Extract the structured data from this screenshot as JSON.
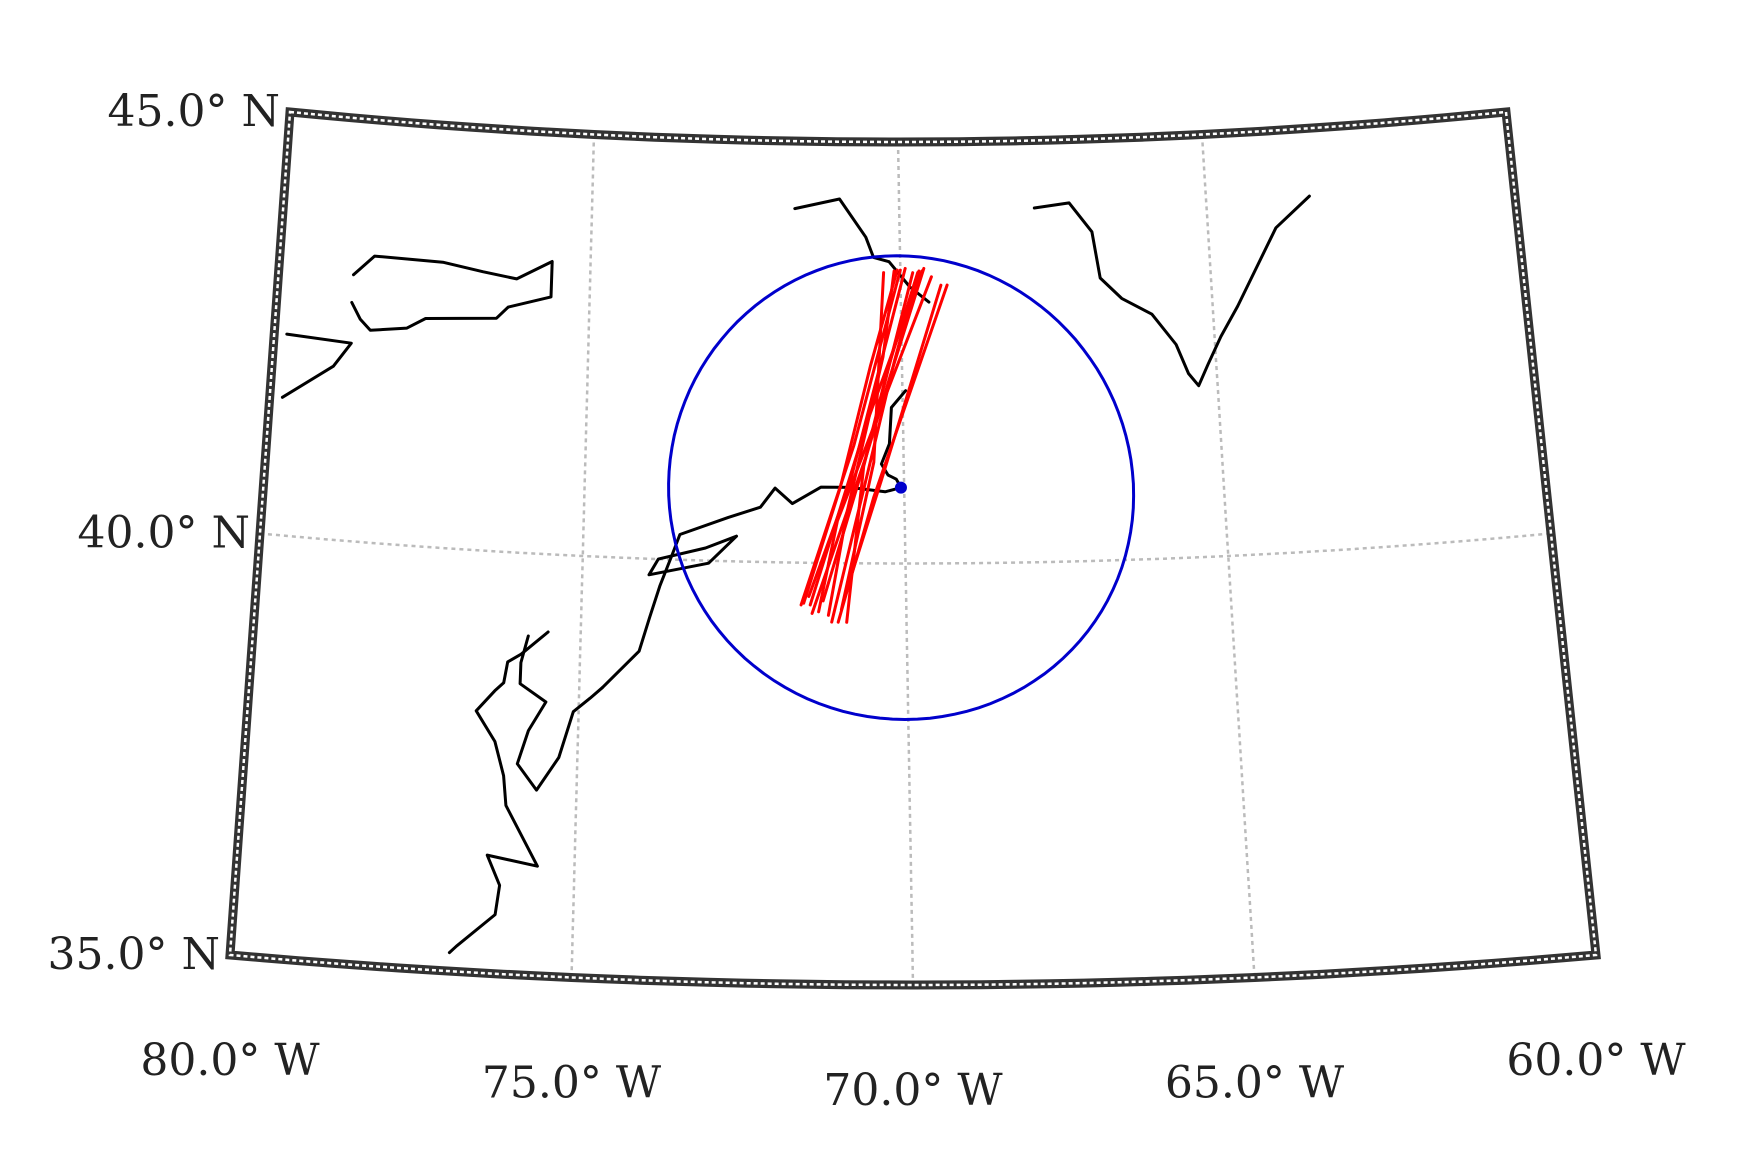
{
  "map": {
    "projection": "conic",
    "extent": {
      "lon": [
        -80,
        -60
      ],
      "lat": [
        35,
        45
      ]
    },
    "lat_labels": [
      {
        "lat": 45,
        "text": "45.0° N"
      },
      {
        "lat": 40,
        "text": "40.0° N"
      },
      {
        "lat": 35,
        "text": "35.0° N"
      }
    ],
    "lon_labels": [
      {
        "lon": -80,
        "text": "80.0° W"
      },
      {
        "lon": -75,
        "text": "75.0° W"
      },
      {
        "lon": -70,
        "text": "70.0° W"
      },
      {
        "lon": -65,
        "text": "65.0° W"
      },
      {
        "lon": -60,
        "text": "60.0° W"
      }
    ],
    "grid_lons": [
      -75,
      -70,
      -65
    ],
    "grid_lats": [
      40
    ],
    "center": {
      "lon": -70.05,
      "lat": 40.9
    },
    "range_circle_radius_deg": 2.75,
    "colors": {
      "frame": "#333333",
      "grid": "#bbbbbb",
      "coastline": "#000000",
      "tracks": "#ff0000",
      "circle": "#0000cc"
    },
    "coastlines": [
      [
        [
          -71.7,
          44.2
        ],
        [
          -70.97,
          44.32
        ],
        [
          -70.55,
          43.87
        ],
        [
          -70.43,
          43.63
        ],
        [
          -70.18,
          43.58
        ],
        [
          -69.85,
          43.28
        ],
        [
          -69.55,
          43.1
        ]
      ],
      [
        [
          -67.8,
          44.2
        ],
        [
          -67.23,
          44.25
        ],
        [
          -66.88,
          43.9
        ],
        [
          -66.78,
          43.35
        ],
        [
          -66.45,
          43.1
        ],
        [
          -65.98,
          42.9
        ],
        [
          -65.62,
          42.53
        ],
        [
          -65.45,
          42.18
        ],
        [
          -65.3,
          42.03
        ],
        [
          -65.13,
          42.28
        ],
        [
          -64.9,
          42.6
        ],
        [
          -64.6,
          42.95
        ],
        [
          -63.9,
          43.85
        ],
        [
          -63.32,
          44.2
        ]
      ],
      [
        [
          -78.8,
          43.15
        ],
        [
          -78.48,
          43.39
        ],
        [
          -77.38,
          43.38
        ],
        [
          -76.73,
          43.3
        ],
        [
          -76.18,
          43.24
        ],
        [
          -75.62,
          43.47
        ],
        [
          -75.62,
          43.05
        ],
        [
          -76.3,
          42.9
        ],
        [
          -76.48,
          42.76
        ],
        [
          -77.07,
          42.73
        ],
        [
          -77.61,
          42.7
        ],
        [
          -77.9,
          42.57
        ],
        [
          -78.48,
          42.51
        ],
        [
          -78.65,
          42.63
        ],
        [
          -78.8,
          42.82
        ]
      ],
      [
        [
          -79.8,
          42.38
        ],
        [
          -78.77,
          42.34
        ],
        [
          -79.03,
          42.05
        ],
        [
          -79.8,
          41.63
        ]
      ],
      [
        [
          -69.95,
          42.05
        ],
        [
          -70.18,
          41.85
        ],
        [
          -70.22,
          41.42
        ],
        [
          -70.35,
          41.18
        ],
        [
          -70.25,
          41.05
        ],
        [
          -70.12,
          41.0
        ],
        [
          -70.05,
          40.9
        ],
        [
          -70.3,
          40.85
        ],
        [
          -70.85,
          40.9
        ],
        [
          -71.3,
          40.9
        ],
        [
          -71.75,
          40.7
        ],
        [
          -72.02,
          40.88
        ],
        [
          -72.25,
          40.65
        ],
        [
          -72.75,
          40.52
        ],
        [
          -73.5,
          40.3
        ],
        [
          -73.62,
          40.05
        ],
        [
          -73.8,
          39.68
        ],
        [
          -73.95,
          39.3
        ],
        [
          -74.1,
          38.9
        ],
        [
          -74.65,
          38.45
        ]
      ],
      [
        [
          -72.62,
          40.3
        ],
        [
          -73.1,
          40.15
        ],
        [
          -73.83,
          40.0
        ],
        [
          -73.97,
          39.81
        ],
        [
          -73.05,
          39.97
        ],
        [
          -72.62,
          40.3
        ]
      ],
      [
        [
          -74.65,
          38.45
        ],
        [
          -74.83,
          38.32
        ],
        [
          -75.08,
          38.15
        ],
        [
          -75.28,
          37.6
        ],
        [
          -75.6,
          37.2
        ],
        [
          -75.9,
          37.5
        ],
        [
          -75.75,
          37.9
        ],
        [
          -75.5,
          38.25
        ],
        [
          -75.9,
          38.45
        ],
        [
          -75.9,
          38.7
        ],
        [
          -75.8,
          39.02
        ]
      ],
      [
        [
          -75.5,
          39.08
        ],
        [
          -75.9,
          38.8
        ],
        [
          -76.1,
          38.7
        ],
        [
          -76.15,
          38.45
        ],
        [
          -76.28,
          38.35
        ],
        [
          -76.55,
          38.1
        ],
        [
          -76.25,
          37.75
        ],
        [
          -76.1,
          37.35
        ],
        [
          -76.05,
          37.0
        ],
        [
          -75.55,
          36.3
        ],
        [
          -76.3,
          36.4
        ],
        [
          -76.1,
          36.05
        ],
        [
          -76.15,
          35.7
        ],
        [
          -76.7,
          35.3
        ],
        [
          -76.8,
          35.22
        ]
      ]
    ],
    "tracks": [
      [
        [
          -70.27,
          43.45
        ],
        [
          -70.47,
          41.2
        ],
        [
          -71.0,
          39.45
        ]
      ],
      [
        [
          -69.72,
          43.45
        ],
        [
          -70.23,
          42.3
        ],
        [
          -70.6,
          41.25
        ],
        [
          -71.45,
          39.4
        ]
      ],
      [
        [
          -69.92,
          43.5
        ],
        [
          -70.85,
          40.95
        ],
        [
          -71.5,
          39.6
        ]
      ],
      [
        [
          -69.35,
          43.3
        ],
        [
          -70.35,
          41.0
        ],
        [
          -70.95,
          39.6
        ]
      ],
      [
        [
          -69.62,
          43.5
        ],
        [
          -70.2,
          42.2
        ],
        [
          -71.28,
          39.55
        ]
      ],
      [
        [
          -70.0,
          43.48
        ],
        [
          -70.78,
          41.4
        ],
        [
          -71.62,
          39.5
        ]
      ],
      [
        [
          -69.5,
          43.4
        ],
        [
          -71.05,
          40.5
        ],
        [
          -71.35,
          39.42
        ]
      ],
      [
        [
          -69.8,
          43.45
        ],
        [
          -70.63,
          41.15
        ],
        [
          -70.92,
          39.3
        ]
      ],
      [
        [
          -69.25,
          43.3
        ],
        [
          -70.48,
          40.78
        ],
        [
          -71.05,
          39.3
        ]
      ],
      [
        [
          -70.1,
          43.47
        ],
        [
          -70.3,
          42.45
        ],
        [
          -70.9,
          40.6
        ],
        [
          -71.2,
          39.38
        ]
      ],
      [
        [
          -69.65,
          43.47
        ],
        [
          -70.58,
          41.65
        ],
        [
          -71.48,
          39.5
        ]
      ],
      [
        [
          -69.7,
          43.47
        ],
        [
          -70.12,
          42.4
        ],
        [
          -70.52,
          41.22
        ],
        [
          -71.15,
          39.3
        ]
      ],
      [
        [
          -70.05,
          43.48
        ],
        [
          -70.5,
          42.35
        ],
        [
          -71.0,
          40.9
        ],
        [
          -71.58,
          39.52
        ]
      ]
    ]
  }
}
